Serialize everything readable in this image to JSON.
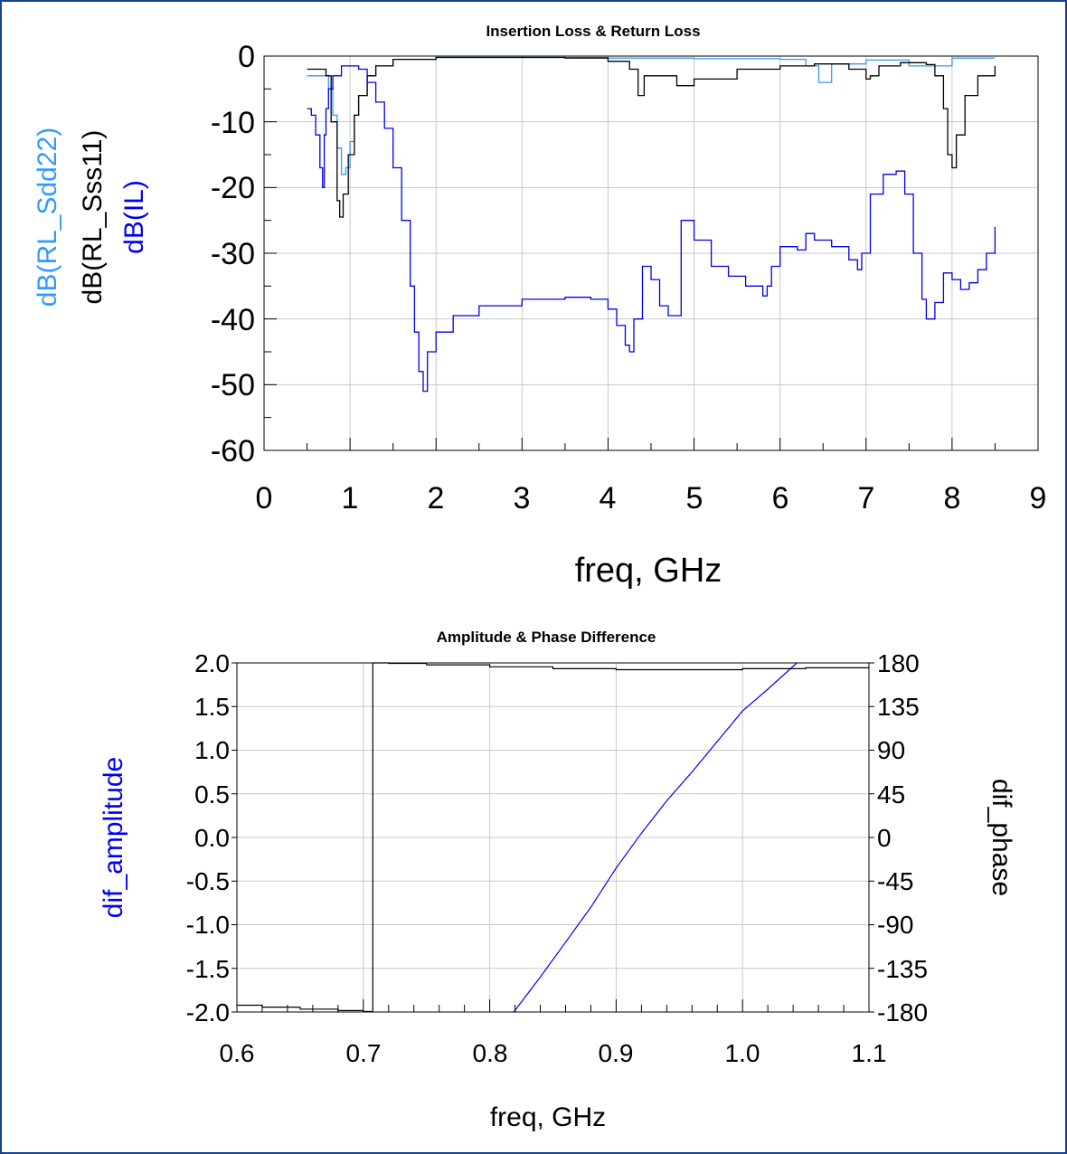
{
  "colors": {
    "frame": "#1a3f8c",
    "grid": "#c8c8c8",
    "rl_sdd22": "#3399ff",
    "rl_sss11": "#000000",
    "il": "#0000ee",
    "dif_amplitude": "#0000ee",
    "dif_phase": "#000000"
  },
  "chart_data": [
    {
      "type": "line",
      "title": "Insertion Loss & Return Loss",
      "xlabel": "freq, GHz",
      "ylabels": [
        "dB(RL_Sdd22)",
        "dB(RL_Sss11)",
        "dB(IL)"
      ],
      "xlim": [
        0,
        9
      ],
      "ylim": [
        -60,
        0
      ],
      "xticks": [
        "0",
        "1",
        "2",
        "3",
        "4",
        "5",
        "6",
        "7",
        "8",
        "9"
      ],
      "yticks": [
        "0",
        "-10",
        "-20",
        "-30",
        "-40",
        "-50",
        "-60"
      ],
      "grid": true,
      "series": [
        {
          "name": "dB(RL_Sdd22)",
          "color": "#3399ff",
          "x": [
            0.5,
            0.7,
            0.75,
            0.8,
            0.85,
            0.9,
            0.95,
            1.0,
            1.05,
            1.1,
            1.2,
            1.3,
            1.5,
            2.0,
            3.0,
            4.0,
            5.0,
            6.0,
            6.3,
            6.45,
            6.6,
            7.0,
            7.5,
            8.0,
            8.5
          ],
          "y": [
            -3,
            -3,
            -5,
            -9,
            -14,
            -18,
            -17,
            -13,
            -9,
            -6,
            -3,
            -1.5,
            -0.5,
            -0.2,
            -0.2,
            -0.3,
            -0.4,
            -0.5,
            -1.5,
            -4,
            -1.2,
            -0.6,
            -1.5,
            -0.3,
            -0.3
          ]
        },
        {
          "name": "dB(RL_Sss11)",
          "color": "#000000",
          "x": [
            0.5,
            0.65,
            0.72,
            0.78,
            0.85,
            0.88,
            0.92,
            0.98,
            1.05,
            1.1,
            1.2,
            1.3,
            1.5,
            2.0,
            3.0,
            3.5,
            4.0,
            4.25,
            4.35,
            4.42,
            4.6,
            4.8,
            5.0,
            5.5,
            6.0,
            6.4,
            6.6,
            6.8,
            7.0,
            7.05,
            7.15,
            7.4,
            7.7,
            7.8,
            7.9,
            7.95,
            8.0,
            8.05,
            8.15,
            8.3,
            8.5
          ],
          "y": [
            -2,
            -2,
            -3,
            -10,
            -22,
            -24.5,
            -21,
            -15,
            -9,
            -6,
            -3,
            -1.5,
            -0.5,
            -0.2,
            -0.2,
            -0.3,
            -0.8,
            -2,
            -6,
            -3,
            -3,
            -4.5,
            -3.5,
            -2,
            -1.5,
            -1.2,
            -1.2,
            -2,
            -3.5,
            -3,
            -1.5,
            -1,
            -1.3,
            -3,
            -8,
            -15,
            -17,
            -12,
            -6,
            -3,
            -1.5
          ]
        },
        {
          "name": "dB(IL)",
          "color": "#0000ee",
          "x": [
            0.5,
            0.55,
            0.6,
            0.65,
            0.68,
            0.7,
            0.72,
            0.75,
            0.8,
            0.9,
            1.0,
            1.1,
            1.2,
            1.3,
            1.4,
            1.5,
            1.6,
            1.7,
            1.75,
            1.8,
            1.85,
            1.9,
            2.0,
            2.2,
            2.5,
            3.0,
            3.5,
            3.8,
            4.0,
            4.1,
            4.2,
            4.25,
            4.3,
            4.4,
            4.5,
            4.6,
            4.7,
            4.85,
            5.0,
            5.2,
            5.4,
            5.6,
            5.8,
            5.85,
            5.9,
            6.0,
            6.2,
            6.3,
            6.4,
            6.6,
            6.8,
            6.9,
            6.95,
            7.05,
            7.2,
            7.35,
            7.45,
            7.55,
            7.65,
            7.7,
            7.8,
            7.9,
            8.0,
            8.1,
            8.2,
            8.3,
            8.4,
            8.5
          ],
          "y": [
            -8,
            -9,
            -12,
            -17,
            -20,
            -12,
            -8,
            -5,
            -3,
            -1.5,
            -1.5,
            -2,
            -4,
            -7,
            -11,
            -17,
            -25,
            -35,
            -42,
            -48,
            -51,
            -45,
            -42,
            -39.5,
            -38,
            -37,
            -36.7,
            -37,
            -38.5,
            -41,
            -44,
            -45,
            -40,
            -32,
            -34,
            -38,
            -39.5,
            -25,
            -28,
            -32,
            -33.5,
            -35,
            -36.5,
            -35,
            -32,
            -29,
            -29.5,
            -27,
            -28,
            -29,
            -31,
            -32.5,
            -30,
            -21,
            -18,
            -17.5,
            -21,
            -30,
            -37,
            -40,
            -37.5,
            -33,
            -34,
            -35.5,
            -34.5,
            -32.5,
            -30,
            -26
          ]
        }
      ]
    },
    {
      "type": "line",
      "title": "Amplitude & Phase Difference",
      "xlabel": "freq, GHz",
      "ylabel_left": "dif_amplitude",
      "ylabel_right": "dif_phase",
      "xlim": [
        0.6,
        1.1
      ],
      "ylim_left": [
        -2,
        2
      ],
      "ylim_right": [
        -180,
        180
      ],
      "xticks": [
        "0.6",
        "0.7",
        "0.8",
        "0.9",
        "1.0",
        "1.1"
      ],
      "yticks_left": [
        "2.0",
        "1.5",
        "1.0",
        "0.5",
        "0.0",
        "-0.5",
        "-1.0",
        "-1.5",
        "-2.0"
      ],
      "yticks_right": [
        "180",
        "135",
        "90",
        "45",
        "0",
        "-45",
        "-90",
        "-135",
        "-180"
      ],
      "grid": true,
      "series": [
        {
          "name": "dif_amplitude",
          "axis": "left",
          "color": "#0000ee",
          "x": [
            0.819,
            0.84,
            0.86,
            0.88,
            0.9,
            0.92,
            0.94,
            0.96,
            0.98,
            1.0,
            1.02,
            1.043
          ],
          "y": [
            -2.0,
            -1.6,
            -1.2,
            -0.8,
            -0.35,
            0.05,
            0.42,
            0.75,
            1.1,
            1.45,
            1.7,
            2.0
          ]
        },
        {
          "name": "dif_phase",
          "axis": "right",
          "color": "#000000",
          "x": [
            0.6,
            0.62,
            0.65,
            0.68,
            0.7,
            0.7075,
            0.7075,
            0.72,
            0.75,
            0.8,
            0.85,
            0.9,
            0.95,
            1.0,
            1.05,
            1.1
          ],
          "y": [
            -173,
            -175,
            -177,
            -178.5,
            -179.5,
            -180,
            180,
            179.5,
            178,
            176,
            174,
            173,
            173,
            174,
            175,
            175
          ]
        }
      ]
    }
  ]
}
